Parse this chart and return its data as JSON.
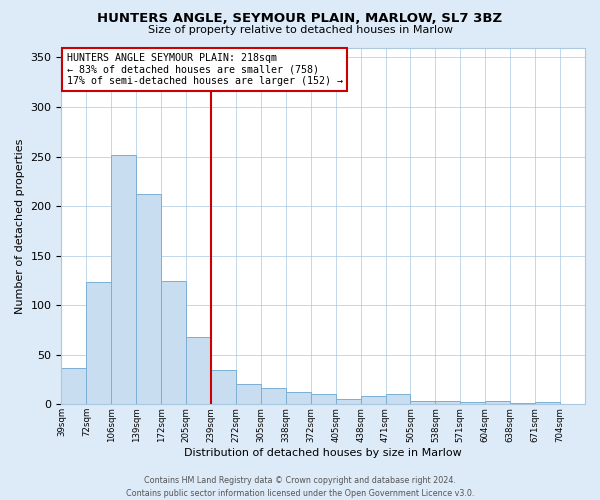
{
  "title": "HUNTERS ANGLE, SEYMOUR PLAIN, MARLOW, SL7 3BZ",
  "subtitle": "Size of property relative to detached houses in Marlow",
  "xlabel": "Distribution of detached houses by size in Marlow",
  "ylabel": "Number of detached properties",
  "bar_labels": [
    "39sqm",
    "72sqm",
    "106sqm",
    "139sqm",
    "172sqm",
    "205sqm",
    "239sqm",
    "272sqm",
    "305sqm",
    "338sqm",
    "372sqm",
    "405sqm",
    "438sqm",
    "471sqm",
    "505sqm",
    "538sqm",
    "571sqm",
    "604sqm",
    "638sqm",
    "671sqm",
    "704sqm"
  ],
  "bar_values": [
    37,
    123,
    252,
    212,
    124,
    68,
    35,
    20,
    16,
    12,
    10,
    5,
    8,
    10,
    3,
    3,
    2,
    3,
    1,
    2,
    0
  ],
  "bar_color": "#c8ddf0",
  "bar_edge_color": "#7aafd4",
  "vline_color": "#cc0000",
  "annotation_title": "HUNTERS ANGLE SEYMOUR PLAIN: 218sqm",
  "annotation_line1": "← 83% of detached houses are smaller (758)",
  "annotation_line2": "17% of semi-detached houses are larger (152) →",
  "annotation_box_color": "#ffffff",
  "annotation_box_edge_color": "#cc0000",
  "ylim": [
    0,
    360
  ],
  "yticks": [
    0,
    50,
    100,
    150,
    200,
    250,
    300,
    350
  ],
  "footer_line1": "Contains HM Land Registry data © Crown copyright and database right 2024.",
  "footer_line2": "Contains public sector information licensed under the Open Government Licence v3.0.",
  "bg_color": "#ddeaf7",
  "plot_bg_color": "#ffffff",
  "vline_pos": 6.0,
  "n_bars": 21
}
